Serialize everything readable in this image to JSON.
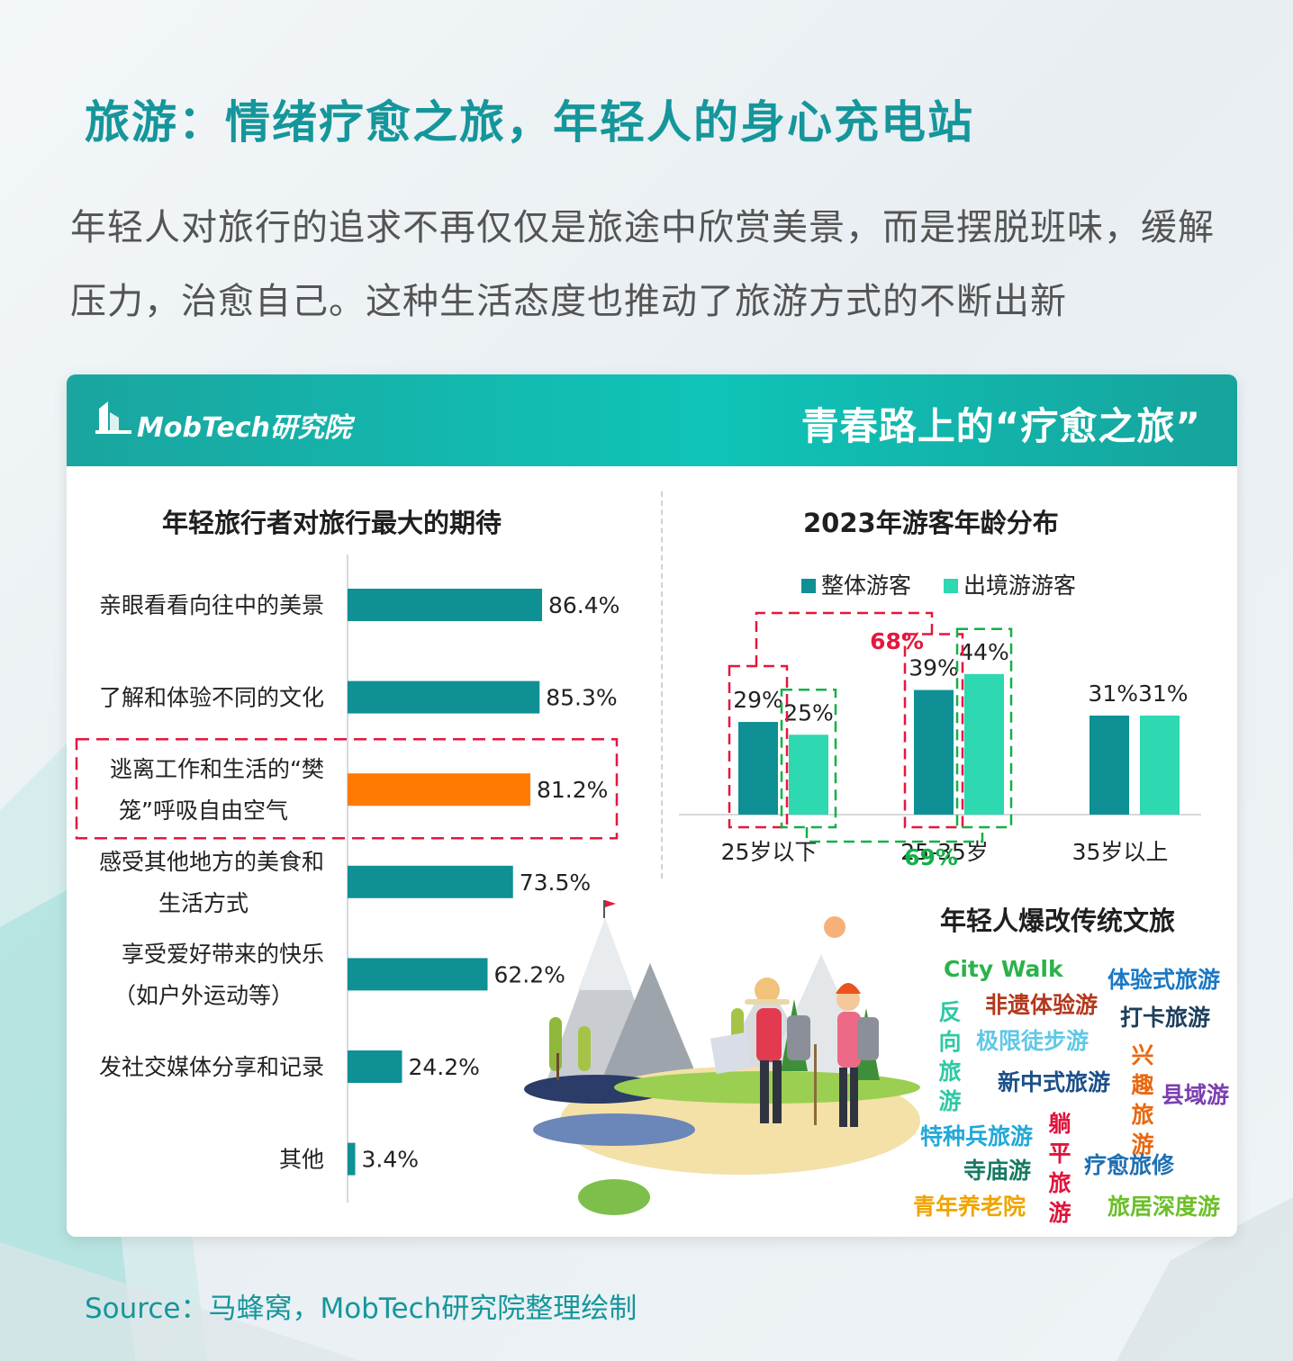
{
  "page": {
    "title": "旅游：情绪疗愈之旅，年轻人的身心充电站",
    "intro": "年轻人对旅行的追求不再仅仅是旅途中欣赏美景，而是摆脱班味，缓解压力，治愈自己。这种生活态度也推动了旅游方式的不断出新",
    "source": "Source：马蜂窝，MobTech研究院整理绘制"
  },
  "card": {
    "logo_text": "MobTech研究院",
    "header_title": "青春路上的“疗愈之旅”"
  },
  "colors": {
    "teal_dark": "#0e9094",
    "teal_light": "#2ed8b0",
    "highlight_orange": "#ff7a00",
    "annot_red": "#e6173d",
    "annot_green": "#12b04a",
    "title_teal": "#15969b"
  },
  "chart_data": [
    {
      "type": "bar",
      "orientation": "horizontal",
      "title": "年轻旅行者对旅行最大的期待",
      "categories": [
        "亲眼看看向往中的美景",
        "了解和体验不同的文化",
        "逃离工作和生活的“樊笼”呼吸自由空气",
        "感受其他地方的美食和生活方式",
        "享受爱好带来的快乐（如户外运动等）",
        "发社交媒体分享和记录",
        "其他"
      ],
      "category_lines": [
        [
          "亲眼看看向往中的美景"
        ],
        [
          "了解和体验不同的文化"
        ],
        [
          "逃离工作和生活的“樊",
          "笼”呼吸自由空气"
        ],
        [
          "感受其他地方的美食和",
          "生活方式"
        ],
        [
          "享受爱好带来的快乐",
          "（如户外运动等）"
        ],
        [
          "发社交媒体分享和记录"
        ],
        [
          "其他"
        ]
      ],
      "values": [
        86.4,
        85.3,
        81.2,
        73.5,
        62.2,
        24.2,
        3.4
      ],
      "value_labels": [
        "86.4%",
        "85.3%",
        "81.2%",
        "73.5%",
        "62.2%",
        "24.2%",
        "3.4%"
      ],
      "unit": "%",
      "highlight_index": 2,
      "grid": false
    },
    {
      "type": "bar",
      "title": "2023年游客年龄分布",
      "categories": [
        "25岁以下",
        "25-35岁",
        "35岁以上"
      ],
      "series": [
        {
          "name": "整体游客",
          "values": [
            29,
            39,
            31
          ],
          "labels": [
            "29%",
            "39%",
            "31%"
          ]
        },
        {
          "name": "出境游游客",
          "values": [
            25,
            44,
            31
          ],
          "labels": [
            "25%",
            "44%",
            "31%"
          ]
        }
      ],
      "unit": "%",
      "legend_position": "top",
      "ylim": [
        0,
        50
      ],
      "annotations": [
        {
          "text": "68%",
          "note": "整体游客 25岁以下 + 25-35岁",
          "color": "#e6173d"
        },
        {
          "text": "69%",
          "note": "出境游游客 25岁以下 + 25-35岁",
          "color": "#12b04a"
        }
      ],
      "grid": false
    }
  ],
  "wordcloud": {
    "title": "年轻人爆改传统文旅",
    "words": [
      {
        "text": "City Walk",
        "color": "#2cb24a"
      },
      {
        "text": "体验式旅游",
        "color": "#1b78c4"
      },
      {
        "text": "非遗体验游",
        "color": "#b3381d"
      },
      {
        "text": "打卡旅游",
        "color": "#1d3f5c"
      },
      {
        "text": "反向旅游",
        "color": "#2ec9a4",
        "vertical": true
      },
      {
        "text": "极限徒步游",
        "color": "#5fc8e8"
      },
      {
        "text": "兴趣旅游",
        "color": "#e8680f",
        "vertical": true
      },
      {
        "text": "新中式旅游",
        "color": "#1b4f8a"
      },
      {
        "text": "县域游",
        "color": "#7b3fb0"
      },
      {
        "text": "特种兵旅游",
        "color": "#22a8d8"
      },
      {
        "text": "躺平旅游",
        "color": "#e0143c",
        "vertical": true
      },
      {
        "text": "寺庙游",
        "color": "#187a63"
      },
      {
        "text": "疗愈旅修",
        "color": "#1f6fb2"
      },
      {
        "text": "青年养老院",
        "color": "#f0a400"
      },
      {
        "text": "旅居深度游",
        "color": "#6cbf2a"
      }
    ]
  }
}
